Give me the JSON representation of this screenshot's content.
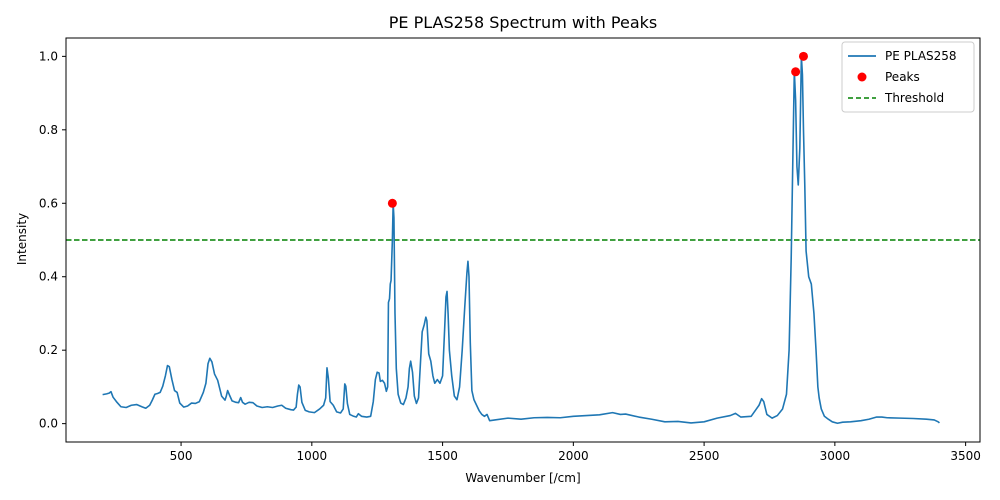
{
  "chart_data": {
    "type": "line",
    "title": "PE PLAS258 Spectrum with Peaks",
    "xlabel": "Wavenumber [/cm]",
    "ylabel": "Intensity",
    "xlim": [
      60,
      3555
    ],
    "ylim": [
      -0.05,
      1.05
    ],
    "x_ticks": [
      500,
      1000,
      1500,
      2000,
      2500,
      3000,
      3500
    ],
    "y_ticks": [
      0.0,
      0.2,
      0.4,
      0.6,
      0.8,
      1.0
    ],
    "x_tick_labels": [
      "500",
      "1000",
      "1500",
      "2000",
      "2500",
      "3000",
      "3500"
    ],
    "y_tick_labels": [
      "0.0",
      "0.2",
      "0.4",
      "0.6",
      "0.8",
      "1.0"
    ],
    "grid": false,
    "legend_position": "top-right",
    "colors": {
      "series": "#1f77b4",
      "peaks": "#ff0000",
      "threshold": "#008000"
    },
    "series": [
      {
        "name": "PE PLAS258",
        "style": "solid",
        "x": [
          200,
          215,
          225,
          232,
          240,
          255,
          270,
          290,
          310,
          330,
          350,
          365,
          380,
          390,
          400,
          410,
          420,
          430,
          440,
          448,
          455,
          465,
          475,
          485,
          495,
          510,
          525,
          540,
          555,
          570,
          585,
          595,
          603,
          610,
          618,
          628,
          640,
          655,
          668,
          673,
          678,
          685,
          695,
          710,
          720,
          728,
          735,
          745,
          760,
          775,
          790,
          810,
          830,
          850,
          870,
          885,
          900,
          920,
          930,
          940,
          945,
          950,
          955,
          962,
          975,
          990,
          1010,
          1030,
          1045,
          1053,
          1058,
          1063,
          1070,
          1082,
          1095,
          1110,
          1120,
          1126,
          1130,
          1136,
          1145,
          1160,
          1170,
          1178,
          1190,
          1210,
          1225,
          1235,
          1243,
          1250,
          1257,
          1262,
          1270,
          1278,
          1285,
          1290,
          1293,
          1297,
          1300,
          1303,
          1308,
          1311,
          1314,
          1318,
          1323,
          1330,
          1340,
          1350,
          1360,
          1368,
          1373,
          1378,
          1385,
          1392,
          1400,
          1408,
          1415,
          1422,
          1430,
          1436,
          1440,
          1447,
          1455,
          1463,
          1470,
          1480,
          1490,
          1500,
          1508,
          1513,
          1517,
          1521,
          1526,
          1535,
          1545,
          1555,
          1565,
          1575,
          1585,
          1593,
          1597,
          1601,
          1606,
          1612,
          1620,
          1630,
          1640,
          1650,
          1660,
          1670,
          1680,
          1700,
          1750,
          1800,
          1850,
          1900,
          1950,
          2000,
          2050,
          2100,
          2150,
          2180,
          2200,
          2250,
          2300,
          2350,
          2400,
          2450,
          2500,
          2550,
          2600,
          2620,
          2640,
          2680,
          2700,
          2710,
          2720,
          2728,
          2740,
          2760,
          2780,
          2800,
          2815,
          2825,
          2833,
          2840,
          2845,
          2850,
          2855,
          2860,
          2866,
          2872,
          2876,
          2880,
          2885,
          2890,
          2900,
          2910,
          2920,
          2928,
          2935,
          2940,
          2948,
          2960,
          2975,
          2990,
          3010,
          3030,
          3060,
          3100,
          3130,
          3160,
          3180,
          3200,
          3250,
          3300,
          3350,
          3380,
          3395,
          3400
        ],
        "y": [
          0.079,
          0.081,
          0.083,
          0.087,
          0.072,
          0.058,
          0.046,
          0.044,
          0.05,
          0.052,
          0.046,
          0.042,
          0.05,
          0.064,
          0.08,
          0.082,
          0.085,
          0.102,
          0.13,
          0.158,
          0.155,
          0.12,
          0.09,
          0.085,
          0.056,
          0.045,
          0.048,
          0.056,
          0.055,
          0.06,
          0.085,
          0.11,
          0.163,
          0.178,
          0.168,
          0.135,
          0.118,
          0.075,
          0.064,
          0.075,
          0.09,
          0.078,
          0.062,
          0.058,
          0.057,
          0.071,
          0.058,
          0.053,
          0.058,
          0.057,
          0.048,
          0.044,
          0.046,
          0.044,
          0.048,
          0.05,
          0.042,
          0.038,
          0.037,
          0.045,
          0.08,
          0.105,
          0.1,
          0.058,
          0.036,
          0.032,
          0.03,
          0.04,
          0.05,
          0.07,
          0.152,
          0.125,
          0.06,
          0.05,
          0.032,
          0.029,
          0.04,
          0.108,
          0.102,
          0.055,
          0.025,
          0.02,
          0.018,
          0.027,
          0.02,
          0.018,
          0.02,
          0.06,
          0.12,
          0.14,
          0.138,
          0.115,
          0.118,
          0.11,
          0.088,
          0.1,
          0.33,
          0.34,
          0.38,
          0.39,
          0.5,
          0.6,
          0.56,
          0.3,
          0.15,
          0.08,
          0.056,
          0.052,
          0.07,
          0.1,
          0.15,
          0.17,
          0.14,
          0.075,
          0.055,
          0.07,
          0.16,
          0.25,
          0.27,
          0.29,
          0.28,
          0.19,
          0.17,
          0.13,
          0.11,
          0.12,
          0.11,
          0.13,
          0.26,
          0.345,
          0.36,
          0.3,
          0.2,
          0.13,
          0.075,
          0.065,
          0.1,
          0.2,
          0.32,
          0.41,
          0.442,
          0.4,
          0.22,
          0.09,
          0.065,
          0.05,
          0.035,
          0.025,
          0.02,
          0.025,
          0.008,
          0.01,
          0.015,
          0.012,
          0.016,
          0.017,
          0.016,
          0.02,
          0.022,
          0.024,
          0.03,
          0.025,
          0.026,
          0.018,
          0.012,
          0.005,
          0.006,
          0.002,
          0.005,
          0.015,
          0.022,
          0.028,
          0.018,
          0.02,
          0.04,
          0.05,
          0.068,
          0.06,
          0.025,
          0.015,
          0.022,
          0.04,
          0.08,
          0.2,
          0.45,
          0.75,
          0.96,
          0.88,
          0.7,
          0.65,
          0.75,
          1.0,
          0.95,
          0.8,
          0.65,
          0.47,
          0.4,
          0.38,
          0.3,
          0.2,
          0.1,
          0.07,
          0.04,
          0.02,
          0.012,
          0.005,
          0.001,
          0.004,
          0.005,
          0.008,
          0.012,
          0.018,
          0.018,
          0.016,
          0.015,
          0.014,
          0.012,
          0.01,
          0.005,
          0.002
        ]
      },
      {
        "name": "Peaks",
        "style": "scatter",
        "x": [
          1308,
          2850,
          2880
        ],
        "y": [
          0.6,
          0.958,
          1.0
        ]
      },
      {
        "name": "Threshold",
        "style": "dashed",
        "y_value": 0.5
      }
    ]
  }
}
